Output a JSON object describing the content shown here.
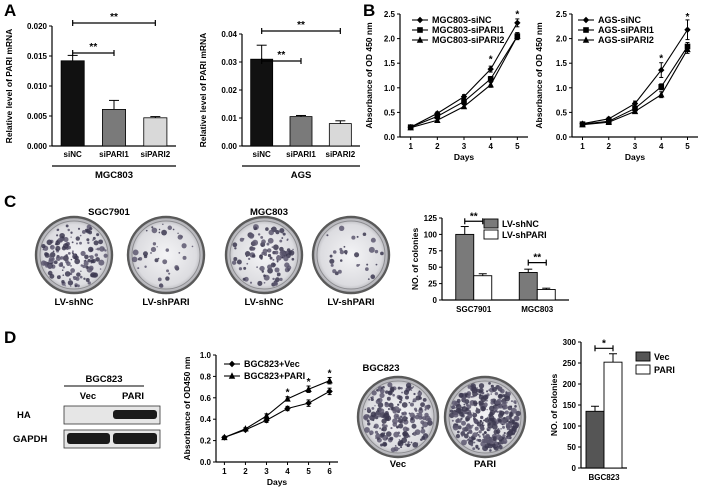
{
  "panels": {
    "a": "A",
    "b": "B",
    "c": "C",
    "d": "D"
  },
  "colors": {
    "black": "#111111",
    "dark_gray": "#555555",
    "mid_gray": "#7a7a7a",
    "light_gray": "#d9d9d9",
    "white": "#ffffff",
    "plate_border": "#5a5a5a",
    "blot_band": "#1a1a1a",
    "blot_bg": "#e6e6e6"
  },
  "plates": {
    "c_left_title": "SGC7901",
    "c_right_title": "MGC803",
    "c_labels": [
      "LV-shNC",
      "LV-shPARI",
      "LV-shNC",
      "LV-shPARI"
    ],
    "d_title": "BGC823",
    "d_labels": [
      "Vec",
      "PARI"
    ]
  },
  "blot": {
    "title": "BGC823",
    "lanes": [
      "Vec",
      "PARI"
    ],
    "rows": [
      "HA",
      "GAPDH"
    ]
  },
  "chart_data": [
    {
      "id": "A1",
      "type": "bar",
      "ylabel": "Relative level of PARI mRNA",
      "categories": [
        "siNC",
        "siPARI1",
        "siPARI2"
      ],
      "values": [
        0.0142,
        0.0061,
        0.0047
      ],
      "errors": [
        0.0009,
        0.0015,
        0.0002
      ],
      "bar_colors": [
        "#111111",
        "#7a7a7a",
        "#d9d9d9"
      ],
      "ylim": [
        0,
        0.02
      ],
      "yticks": [
        "0.000",
        "0.005",
        "0.010",
        "0.015",
        "0.020"
      ],
      "group_label": "MGC803",
      "significance": [
        {
          "from": 0,
          "to": 1,
          "label": "**"
        },
        {
          "from": 0,
          "to": 2,
          "label": "**"
        }
      ]
    },
    {
      "id": "A2",
      "type": "bar",
      "ylabel": "Relative level of PARI mRNA",
      "categories": [
        "siNC",
        "siPARI1",
        "siPARI2"
      ],
      "values": [
        0.031,
        0.0105,
        0.008
      ],
      "errors": [
        0.005,
        0.0004,
        0.001
      ],
      "bar_colors": [
        "#111111",
        "#7a7a7a",
        "#d9d9d9"
      ],
      "ylim": [
        0,
        0.04
      ],
      "yticks": [
        "0.00",
        "0.01",
        "0.02",
        "0.03",
        "0.04"
      ],
      "group_label": "AGS",
      "significance": [
        {
          "from": 0,
          "to": 1,
          "label": "**"
        },
        {
          "from": 0,
          "to": 2,
          "label": "**"
        }
      ]
    },
    {
      "id": "B1",
      "type": "line",
      "xlabel": "Days",
      "ylabel": "Absorbance of OD 450 nm",
      "x": [
        1,
        2,
        3,
        4,
        5
      ],
      "xlim": [
        0.6,
        5.4
      ],
      "ylim": [
        0,
        2.5
      ],
      "yticks": [
        "0.0",
        "0.5",
        "1.0",
        "1.5",
        "2.0",
        "2.5"
      ],
      "series": [
        {
          "name": "MGC803-siNC",
          "marker": "diamond",
          "values": [
            0.2,
            0.48,
            0.82,
            1.38,
            2.32
          ],
          "errors": [
            0.02,
            0.03,
            0.04,
            0.06,
            0.08
          ]
        },
        {
          "name": "MGC803-siPARI1",
          "marker": "square",
          "values": [
            0.2,
            0.42,
            0.72,
            1.18,
            2.05
          ],
          "errors": [
            0.02,
            0.03,
            0.04,
            0.05,
            0.07
          ]
        },
        {
          "name": "MGC803-siPARI2",
          "marker": "triangle",
          "values": [
            0.19,
            0.34,
            0.62,
            1.06,
            2.05
          ],
          "errors": [
            0.02,
            0.03,
            0.04,
            0.05,
            0.07
          ]
        }
      ],
      "stars": [
        {
          "x": 4,
          "y": 1.55,
          "label": "*"
        },
        {
          "x": 5,
          "y": 2.47,
          "label": "*"
        }
      ]
    },
    {
      "id": "B2",
      "type": "line",
      "xlabel": "Days",
      "ylabel": "Absorbance of OD 450 nm",
      "x": [
        1,
        2,
        3,
        4,
        5
      ],
      "xlim": [
        0.6,
        5.4
      ],
      "ylim": [
        0,
        2.5
      ],
      "yticks": [
        "0.0",
        "0.5",
        "1.0",
        "1.5",
        "2.0",
        "2.5"
      ],
      "series": [
        {
          "name": "AGS-siNC",
          "marker": "diamond",
          "values": [
            0.27,
            0.37,
            0.68,
            1.36,
            2.18
          ],
          "errors": [
            0.02,
            0.03,
            0.05,
            0.15,
            0.2
          ]
        },
        {
          "name": "AGS-siPARI1",
          "marker": "square",
          "values": [
            0.26,
            0.32,
            0.58,
            1.02,
            1.84
          ],
          "errors": [
            0.02,
            0.03,
            0.04,
            0.06,
            0.08
          ]
        },
        {
          "name": "AGS-siPARI2",
          "marker": "triangle",
          "values": [
            0.25,
            0.3,
            0.52,
            0.86,
            1.78
          ],
          "errors": [
            0.02,
            0.03,
            0.04,
            0.06,
            0.08
          ]
        }
      ],
      "stars": [
        {
          "x": 4,
          "y": 1.58,
          "label": "*"
        },
        {
          "x": 5,
          "y": 2.42,
          "label": "*"
        }
      ]
    },
    {
      "id": "C",
      "type": "bar",
      "ylabel": "NO. of colonies",
      "categories": [
        "SGC7901",
        "MGC803"
      ],
      "series": [
        {
          "name": "LV-shNC",
          "color": "#7a7a7a",
          "values": [
            100,
            42
          ],
          "errors": [
            12,
            5
          ]
        },
        {
          "name": "LV-shPARI",
          "color": "#ffffff",
          "values": [
            37,
            16
          ],
          "errors": [
            3,
            2
          ]
        }
      ],
      "ylim": [
        0,
        125
      ],
      "yticks": [
        "0",
        "25",
        "50",
        "75",
        "100",
        "125"
      ],
      "legend": "top-right",
      "significance": [
        {
          "category": 0,
          "label": "**",
          "y": 120
        },
        {
          "category": 1,
          "label": "**",
          "y": 57
        }
      ]
    },
    {
      "id": "D1",
      "type": "line",
      "xlabel": "Days",
      "ylabel": "Absorbance of OD450 nm",
      "x": [
        1,
        2,
        3,
        4,
        5,
        6
      ],
      "xlim": [
        0.6,
        6.4
      ],
      "ylim": [
        0,
        1.0
      ],
      "yticks": [
        "0.0",
        "0.2",
        "0.4",
        "0.6",
        "0.8",
        "1.0"
      ],
      "series": [
        {
          "name": "BGC823+Vec",
          "marker": "diamond",
          "values": [
            0.23,
            0.3,
            0.39,
            0.5,
            0.55,
            0.66
          ],
          "errors": [
            0.01,
            0.01,
            0.02,
            0.02,
            0.03,
            0.03
          ]
        },
        {
          "name": "BGC823+PARI",
          "marker": "triangle",
          "values": [
            0.23,
            0.31,
            0.43,
            0.59,
            0.68,
            0.76
          ],
          "errors": [
            0.01,
            0.01,
            0.02,
            0.02,
            0.03,
            0.03
          ]
        }
      ],
      "stars": [
        {
          "x": 4,
          "y": 0.64,
          "label": "*"
        },
        {
          "x": 5,
          "y": 0.74,
          "label": "*"
        },
        {
          "x": 6,
          "y": 0.82,
          "label": "*"
        }
      ]
    },
    {
      "id": "D2",
      "type": "bar",
      "ylabel": "NO. of colonies",
      "categories": [
        "BGC823"
      ],
      "series": [
        {
          "name": "Vec",
          "color": "#555555",
          "values": [
            135
          ],
          "errors": [
            12
          ]
        },
        {
          "name": "PARI",
          "color": "#ffffff",
          "values": [
            252
          ],
          "errors": [
            20
          ]
        }
      ],
      "ylim": [
        0,
        300
      ],
      "yticks": [
        "0",
        "50",
        "100",
        "150",
        "200",
        "250",
        "300"
      ],
      "legend": "top-right",
      "significance": [
        {
          "category": 0,
          "label": "*",
          "y": 285
        }
      ]
    }
  ]
}
